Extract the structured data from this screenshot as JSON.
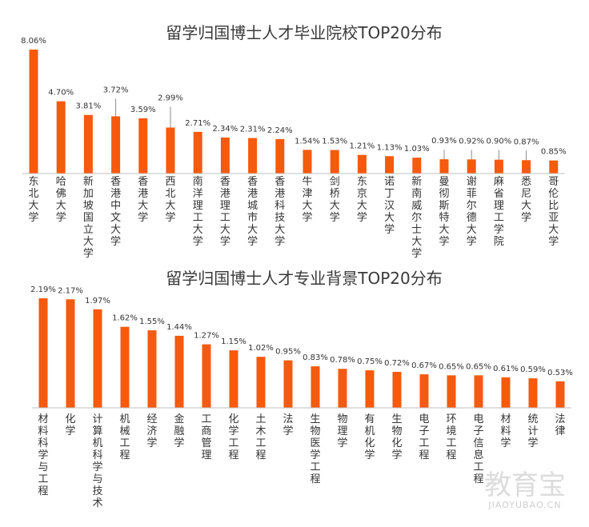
{
  "chart_data": [
    {
      "type": "bar",
      "title": "留学归国博士人才毕业院校TOP20分布",
      "categories": [
        "东北大学",
        "哈佛大学",
        "新加坡国立大学",
        "香港中文大学",
        "香港大学",
        "西北大学",
        "南洋理工大学",
        "香港理工大学",
        "香港城市大学",
        "香港科技大学",
        "牛津大学",
        "剑桥大学",
        "东京大学",
        "诺丁汉大学",
        "新南威尔士大学",
        "曼彻斯特大学",
        "谢菲尔德大学",
        "麻省理工学院",
        "悉尼大学",
        "哥伦比亚大学"
      ],
      "values": [
        8.06,
        4.7,
        3.81,
        3.72,
        3.59,
        2.99,
        2.71,
        2.34,
        2.31,
        2.24,
        1.54,
        1.53,
        1.21,
        1.13,
        1.03,
        0.93,
        0.92,
        0.9,
        0.87,
        0.85
      ],
      "value_labels": [
        "8.06%",
        "4.70%",
        "3.81%",
        "3.72%",
        "3.59%",
        "2.99%",
        "2.71%",
        "2.34%",
        "2.31%",
        "2.24%",
        "1.54%",
        "1.53%",
        "1.21%",
        "1.13%",
        "1.03%",
        "0.93%",
        "0.92%",
        "0.90%",
        "0.87%",
        "0.85%"
      ],
      "unit": "%",
      "color": "#f55a0e",
      "ylim": [
        0,
        8.06
      ],
      "grid": false,
      "legend": "none"
    },
    {
      "type": "bar",
      "title": "留学归国博士人才专业背景TOP20分布",
      "categories": [
        "材料科学与工程",
        "化学",
        "计算机科学与技术",
        "机械工程",
        "经济学",
        "金融学",
        "工商管理",
        "化学工程",
        "土木工程",
        "法学",
        "生物医学工程",
        "物理学",
        "有机化学",
        "生物化学",
        "电子工程",
        "环境工程",
        "电子信息工程",
        "材料学",
        "统计学",
        "法律"
      ],
      "values": [
        2.19,
        2.17,
        1.97,
        1.62,
        1.55,
        1.44,
        1.27,
        1.15,
        1.02,
        0.95,
        0.83,
        0.78,
        0.75,
        0.72,
        0.67,
        0.65,
        0.65,
        0.61,
        0.59,
        0.53
      ],
      "value_labels": [
        "2.19%",
        "2.17%",
        "1.97%",
        "1.62%",
        "1.55%",
        "1.44%",
        "1.27%",
        "1.15%",
        "1.02%",
        "0.95%",
        "0.83%",
        "0.78%",
        "0.75%",
        "0.72%",
        "0.67%",
        "0.65%",
        "0.65%",
        "0.61%",
        "0.59%",
        "0.53%"
      ],
      "unit": "%",
      "color": "#f55a0e",
      "ylim": [
        0,
        2.19
      ],
      "grid": false,
      "legend": "none"
    }
  ],
  "watermark": {
    "main": "教育宝",
    "sub": "JIAOYUBAO.CN",
    "color": "#d9d9d9"
  }
}
